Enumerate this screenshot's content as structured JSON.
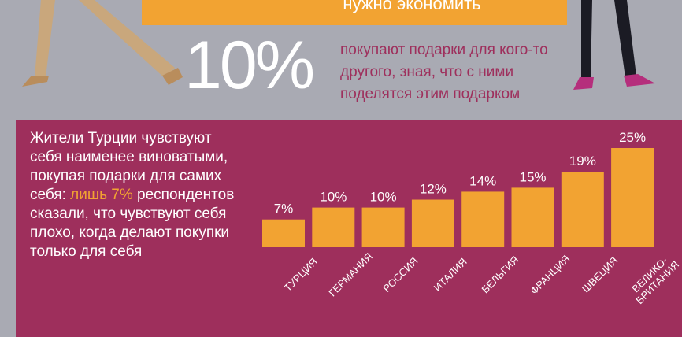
{
  "banner": {
    "text": "нужно экономить"
  },
  "stat": {
    "value": "10%",
    "lines": [
      "покупают подарки для кого-то",
      "другого, зная, что с ними",
      "поделятся этим подарком"
    ]
  },
  "panel": {
    "text_before": "Жители Турции чувствуют себя наименее виноватыми, покупая подарки для самих себя: ",
    "highlight": "лишь 7%",
    "text_after": " респондентов сказали, что чувствуют себя плохо, когда делают покупки только для себя"
  },
  "colors": {
    "accent": "#f2a332",
    "panel": "#9e2f5c",
    "background": "#a9aab3"
  },
  "chart_data": {
    "type": "bar",
    "categories": [
      "ТУРЦИЯ",
      "ГЕРМАНИЯ",
      "РОССИЯ",
      "ИТАЛИЯ",
      "БЕЛЬГИЯ",
      "ФРАНЦИЯ",
      "ШВЕЦИЯ",
      "ВЕЛИКО-\nБРИТАНИЯ"
    ],
    "values": [
      7,
      10,
      10,
      12,
      14,
      15,
      19,
      25
    ],
    "value_labels": [
      "7%",
      "10%",
      "10%",
      "12%",
      "14%",
      "15%",
      "19%",
      "25%"
    ],
    "ylim": [
      0,
      25
    ]
  }
}
